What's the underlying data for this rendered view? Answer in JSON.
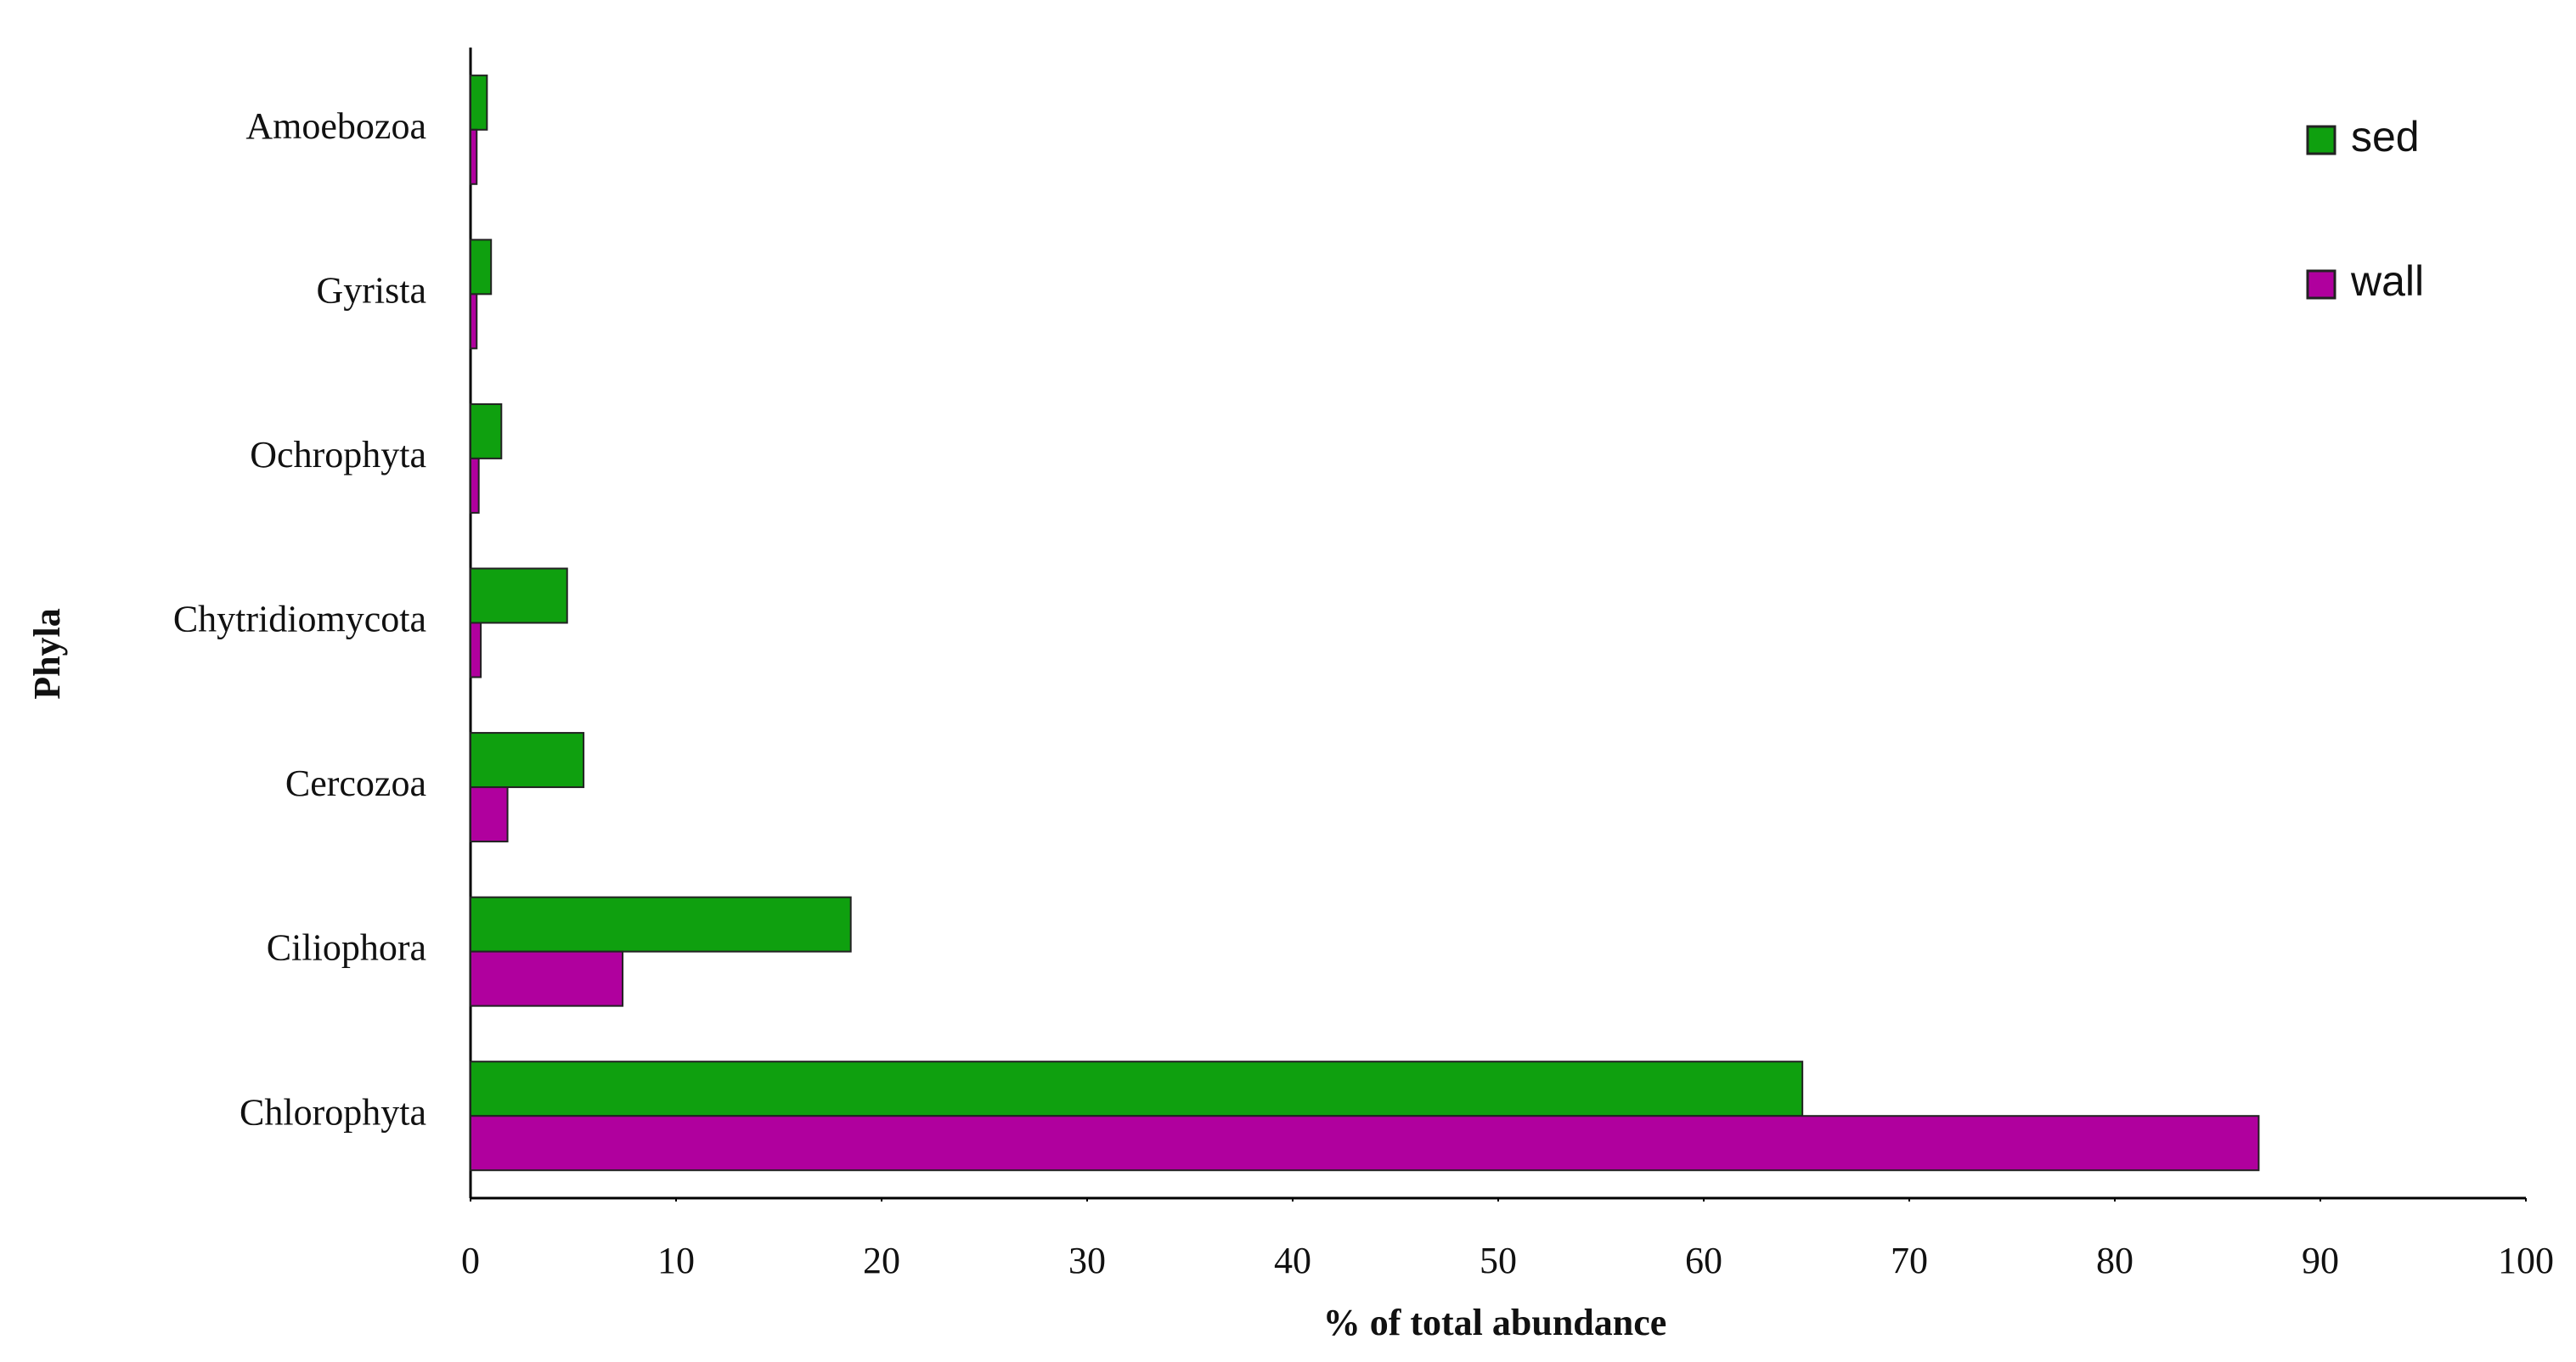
{
  "chart_data": {
    "type": "bar",
    "orientation": "horizontal",
    "categories": [
      "Amoebozoa",
      "Gyrista",
      "Ochrophyta",
      "Chytridiomycota",
      "Cercozoa",
      "Ciliophora",
      "Chlorophyta"
    ],
    "series": [
      {
        "name": "sed",
        "color": "#0fa00f",
        "values": [
          0.8,
          1.0,
          1.5,
          4.7,
          5.5,
          18.5,
          64.8
        ]
      },
      {
        "name": "wall",
        "color": "#b0009e",
        "values": [
          0.3,
          0.3,
          0.4,
          0.5,
          1.8,
          7.4,
          87.0
        ]
      }
    ],
    "x_label": "% of total abundance",
    "y_label": "Phyla",
    "xlim": [
      0,
      100
    ],
    "xticks": [
      0,
      10,
      20,
      30,
      40,
      50,
      60,
      70,
      80,
      90,
      100
    ],
    "grid": false,
    "legend": "upper right"
  }
}
